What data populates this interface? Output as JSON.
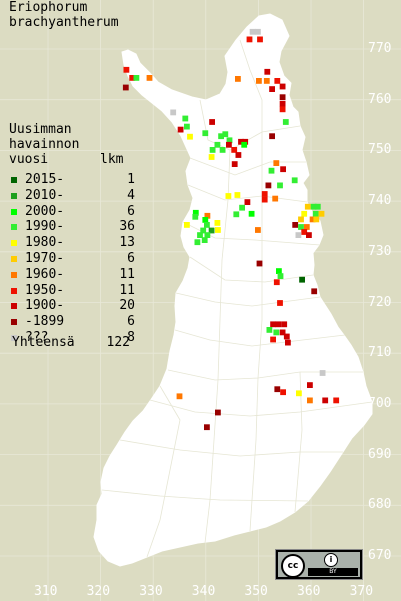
{
  "title": [
    "Eriophorum",
    "brachyantherum"
  ],
  "legend": {
    "heading": [
      "Uusimman",
      "havainnon",
      "vuosi"
    ],
    "count_header": "lkm",
    "rows": [
      {
        "label": "2015-",
        "count": "1",
        "color": "#006400"
      },
      {
        "label": "2010-",
        "count": "4",
        "color": "#1ea01e"
      },
      {
        "label": "2000-",
        "count": "6",
        "color": "#00ff00"
      },
      {
        "label": "1990-",
        "count": "36",
        "color": "#33ee33"
      },
      {
        "label": "1980-",
        "count": "13",
        "color": "#ffff00"
      },
      {
        "label": "1970-",
        "count": "6",
        "color": "#ffcc00"
      },
      {
        "label": "1960-",
        "count": "11",
        "color": "#ff7700"
      },
      {
        "label": "1950-",
        "count": "11",
        "color": "#ee1100"
      },
      {
        "label": "1900-",
        "count": "20",
        "color": "#cc0000"
      },
      {
        "label": "-1899",
        "count": "6",
        "color": "#990000"
      },
      {
        "label": "???",
        "count": "8",
        "color": "#c8c8c8"
      }
    ],
    "total_label": "Yhteensä",
    "total_count": "122"
  },
  "axes": {
    "y_labels": [
      "770",
      "760",
      "750",
      "740",
      "730",
      "720",
      "710",
      "700",
      "690",
      "680",
      "670"
    ],
    "x_labels": [
      "310",
      "320",
      "330",
      "340",
      "350",
      "360",
      "370"
    ]
  },
  "license": {
    "cc": "cc",
    "by": "BY"
  },
  "chart_data": {
    "type": "scatter",
    "x_range": [
      310,
      370
    ],
    "y_range": [
      666,
      775
    ],
    "cells": [
      [
        348.9,
        773.4,
        "#c8c8c8"
      ],
      [
        349.9,
        773.4,
        "#c8c8c8"
      ],
      [
        348.3,
        771.9,
        "#ee1100"
      ],
      [
        350.3,
        771.9,
        "#ee1100"
      ],
      [
        324.9,
        765.9,
        "#ee1100"
      ],
      [
        326.0,
        764.3,
        "#ee1100"
      ],
      [
        326.8,
        764.3,
        "#33ee33"
      ],
      [
        329.3,
        764.3,
        "#ff7700"
      ],
      [
        324.8,
        762.4,
        "#990000"
      ],
      [
        346.1,
        764.1,
        "#ff7700"
      ],
      [
        351.7,
        765.5,
        "#cc0000"
      ],
      [
        350.1,
        763.7,
        "#ff7700"
      ],
      [
        351.6,
        763.7,
        "#ff7700"
      ],
      [
        353.6,
        763.7,
        "#ee1100"
      ],
      [
        354.6,
        762.6,
        "#cc0000"
      ],
      [
        352.6,
        762.1,
        "#cc0000"
      ],
      [
        354.6,
        760.5,
        "#990000"
      ],
      [
        354.6,
        759.2,
        "#cc0000"
      ],
      [
        354.6,
        758.1,
        "#ee1100"
      ],
      [
        333.8,
        757.5,
        "#c8c8c8"
      ],
      [
        355.2,
        755.6,
        "#33ee33"
      ],
      [
        336.1,
        756.3,
        "#33ee33"
      ],
      [
        336.4,
        754.7,
        "#33ee33"
      ],
      [
        341.2,
        755.6,
        "#cc0000"
      ],
      [
        335.2,
        754.1,
        "#cc0000"
      ],
      [
        337.0,
        752.7,
        "#ffff00"
      ],
      [
        343.7,
        753.2,
        "#33ee33"
      ],
      [
        342.9,
        752.8,
        "#33ee33"
      ],
      [
        344.5,
        752.0,
        "#33ee33"
      ],
      [
        346.7,
        751.7,
        "#cc0000"
      ],
      [
        347.5,
        751.7,
        "#cc0000"
      ],
      [
        342.2,
        751.1,
        "#33ee33"
      ],
      [
        344.4,
        751.1,
        "#cc0000"
      ],
      [
        347.3,
        751.1,
        "#00ff00"
      ],
      [
        341.3,
        750.1,
        "#33ee33"
      ],
      [
        343.2,
        750.1,
        "#33ee33"
      ],
      [
        345.4,
        750.1,
        "#ee1100"
      ],
      [
        346.2,
        749.1,
        "#cc0000"
      ],
      [
        341.1,
        748.7,
        "#ffff00"
      ],
      [
        339.9,
        753.4,
        "#33ee33"
      ],
      [
        352.6,
        752.8,
        "#990000"
      ],
      [
        345.5,
        747.3,
        "#cc0000"
      ],
      [
        353.4,
        747.5,
        "#ff7700"
      ],
      [
        354.7,
        746.3,
        "#cc0000"
      ],
      [
        352.5,
        746.0,
        "#33ee33"
      ],
      [
        351.9,
        743.1,
        "#990000"
      ],
      [
        354.1,
        743.1,
        "#33ee33"
      ],
      [
        356.9,
        744.1,
        "#33ee33"
      ],
      [
        351.2,
        741.4,
        "#ee1100"
      ],
      [
        351.2,
        740.3,
        "#ee1100"
      ],
      [
        353.2,
        740.5,
        "#ff7700"
      ],
      [
        344.3,
        741.0,
        "#ffff00"
      ],
      [
        346.0,
        741.2,
        "#ffff00"
      ],
      [
        347.9,
        739.8,
        "#cc0000"
      ],
      [
        346.9,
        738.7,
        "#33ee33"
      ],
      [
        348.7,
        737.5,
        "#00ff00"
      ],
      [
        345.8,
        737.4,
        "#33ee33"
      ],
      [
        338.1,
        737.7,
        "#00ff00"
      ],
      [
        340.3,
        737.1,
        "#ff7700"
      ],
      [
        338.0,
        736.9,
        "#33ee33"
      ],
      [
        339.9,
        736.3,
        "#00ff00"
      ],
      [
        340.2,
        735.3,
        "#33ee33"
      ],
      [
        339.5,
        734.2,
        "#33ee33"
      ],
      [
        341.1,
        734.2,
        "#1ea01e"
      ],
      [
        338.9,
        733.3,
        "#33ee33"
      ],
      [
        340.3,
        733.3,
        "#33ee33"
      ],
      [
        339.8,
        732.3,
        "#33ee33"
      ],
      [
        338.4,
        731.9,
        "#33ee33"
      ],
      [
        336.4,
        735.3,
        "#ffff00"
      ],
      [
        342.2,
        735.7,
        "#ffff00"
      ],
      [
        342.3,
        734.3,
        "#ffff00"
      ],
      [
        349.9,
        734.3,
        "#ff7700"
      ],
      [
        359.4,
        738.9,
        "#ffcc00"
      ],
      [
        360.5,
        738.9,
        "#33ee33"
      ],
      [
        361.3,
        738.9,
        "#33ee33"
      ],
      [
        358.7,
        737.5,
        "#ffff00"
      ],
      [
        360.9,
        737.5,
        "#33ee33"
      ],
      [
        362.0,
        737.5,
        "#ffcc00"
      ],
      [
        358.1,
        736.4,
        "#ffcc00"
      ],
      [
        360.3,
        736.4,
        "#ff7700"
      ],
      [
        361.0,
        736.4,
        "#ffcc00"
      ],
      [
        357.0,
        735.3,
        "#990000"
      ],
      [
        358.1,
        734.9,
        "#33ee33"
      ],
      [
        359.2,
        734.9,
        "#ff7700"
      ],
      [
        358.7,
        733.9,
        "#ee1100"
      ],
      [
        357.6,
        733.3,
        "#c8c8c8"
      ],
      [
        359.6,
        733.3,
        "#cc0000"
      ],
      [
        350.2,
        727.7,
        "#990000"
      ],
      [
        353.9,
        726.2,
        "#00ff00"
      ],
      [
        354.2,
        725.2,
        "#33ee33"
      ],
      [
        358.3,
        724.5,
        "#006400"
      ],
      [
        353.5,
        724.0,
        "#ee1100"
      ],
      [
        360.6,
        722.2,
        "#990000"
      ],
      [
        354.1,
        719.9,
        "#ee1100"
      ],
      [
        352.8,
        715.7,
        "#cc0000"
      ],
      [
        353.8,
        715.7,
        "#cc0000"
      ],
      [
        354.9,
        715.7,
        "#cc0000"
      ],
      [
        352.1,
        714.6,
        "#33ee33"
      ],
      [
        353.4,
        714.1,
        "#33ee33"
      ],
      [
        354.6,
        714.1,
        "#cc0000"
      ],
      [
        355.4,
        713.3,
        "#cc0000"
      ],
      [
        352.8,
        712.7,
        "#ee1100"
      ],
      [
        355.6,
        712.1,
        "#cc0000"
      ],
      [
        362.2,
        706.1,
        "#c8c8c8"
      ],
      [
        359.8,
        703.7,
        "#cc0000"
      ],
      [
        353.6,
        702.9,
        "#990000"
      ],
      [
        354.7,
        702.3,
        "#ee1100"
      ],
      [
        357.7,
        702.1,
        "#ffff00"
      ],
      [
        359.8,
        700.7,
        "#ff7700"
      ],
      [
        362.7,
        700.7,
        "#cc0000"
      ],
      [
        364.8,
        700.7,
        "#ee1100"
      ],
      [
        335.0,
        701.5,
        "#ff7700"
      ],
      [
        342.3,
        698.3,
        "#990000"
      ],
      [
        340.2,
        695.4,
        "#990000"
      ]
    ]
  }
}
